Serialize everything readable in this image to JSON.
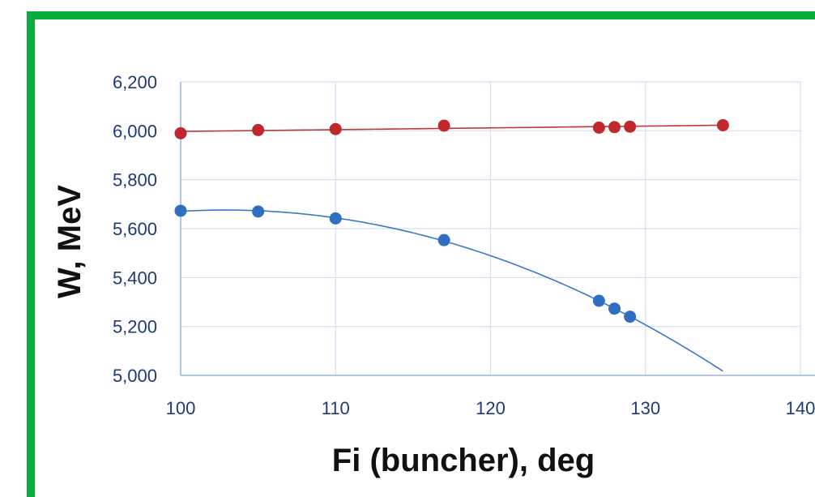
{
  "colors": {
    "frame": "#0aac3e",
    "grid": "#d3dff0",
    "axis": "#9fb4d6",
    "tick_text": "#1f3b73",
    "series_red": "#c0282e",
    "series_red_line": "#b83a3a",
    "series_blue": "#2f6fc1",
    "series_blue_line": "#3c78c8"
  },
  "chart_data": {
    "type": "scatter",
    "title": "",
    "xlabel": "Fi (buncher), deg",
    "ylabel": "W, MeV",
    "xlim": [
      100,
      140
    ],
    "ylim": [
      5000,
      6200
    ],
    "x_ticks": [
      "100",
      "110",
      "120",
      "130",
      "140"
    ],
    "y_ticks": [
      "5,000",
      "5,200",
      "5,400",
      "5,600",
      "5,800",
      "6,000",
      "6,200"
    ],
    "grid": true,
    "legend": "none",
    "series": [
      {
        "color": "#c0282e",
        "points": [
          {
            "x": 100,
            "y": 5990
          },
          {
            "x": 105,
            "y": 6003
          },
          {
            "x": 110,
            "y": 6007
          },
          {
            "x": 117,
            "y": 6021
          },
          {
            "x": 127,
            "y": 6013
          },
          {
            "x": 128,
            "y": 6015
          },
          {
            "x": 129,
            "y": 6017
          },
          {
            "x": 135,
            "y": 6023
          }
        ],
        "trendline": {
          "kind": "linear",
          "x_range": [
            100,
            135
          ]
        }
      },
      {
        "color": "#2f6fc1",
        "points": [
          {
            "x": 100,
            "y": 5673
          },
          {
            "x": 105,
            "y": 5670
          },
          {
            "x": 110,
            "y": 5642
          },
          {
            "x": 117,
            "y": 5553
          },
          {
            "x": 127,
            "y": 5305
          },
          {
            "x": 128,
            "y": 5273
          },
          {
            "x": 129,
            "y": 5240
          }
        ],
        "trendline": {
          "kind": "quadratic",
          "x_range": [
            100,
            135
          ]
        }
      }
    ]
  }
}
